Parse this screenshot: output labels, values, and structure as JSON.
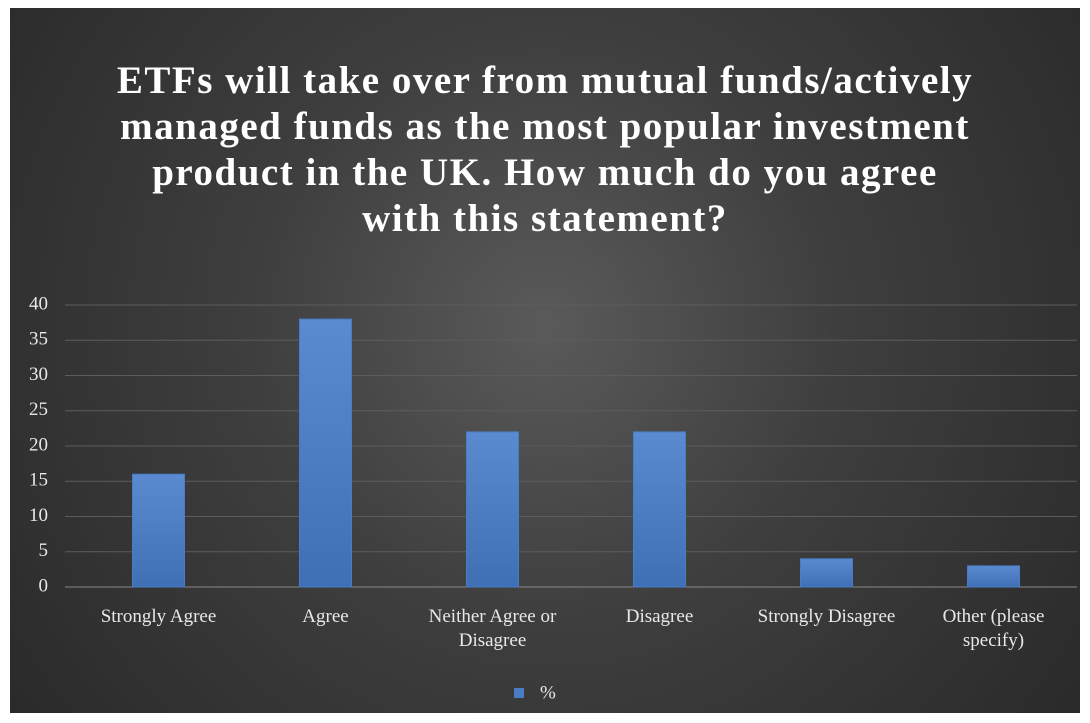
{
  "chart_data": {
    "type": "bar",
    "title": "ETFs will take over from mutual funds/actively managed funds as the most popular investment product in the UK. How much do you agree with this statement?",
    "categories": [
      "Strongly Agree",
      "Agree",
      "Neither Agree or Disagree",
      "Disagree",
      "Strongly Disagree",
      "Other (please specify)"
    ],
    "series": [
      {
        "name": "%",
        "color": "#4a7cc4",
        "values": [
          16,
          38,
          22,
          22,
          4,
          3
        ]
      }
    ],
    "ylim": [
      0,
      40
    ],
    "yticks": [
      0,
      5,
      10,
      15,
      20,
      25,
      30,
      35,
      40
    ],
    "grid": true,
    "legend": "bottom"
  }
}
